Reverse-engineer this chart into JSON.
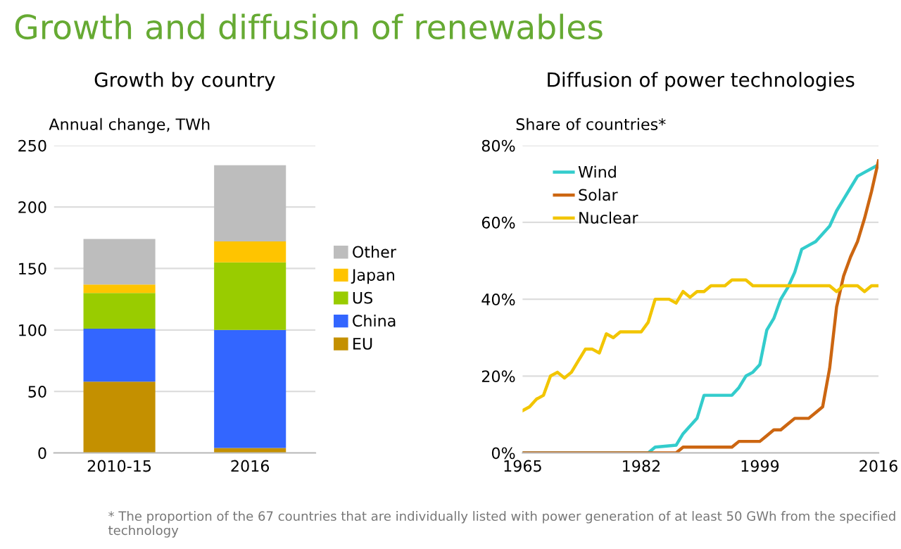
{
  "chart_data": [
    {
      "type": "other",
      "title": "Growth and diffusion of renewables",
      "annotations": [
        "* The proportion of the 67 countries that are individually listed with power generation of at least 50 GWh from the specified technology"
      ]
    },
    {
      "type": "bar",
      "title": "Growth by country",
      "ylabel": "Annual change, TWh",
      "categories": [
        "2010-15",
        "2016"
      ],
      "stacked": true,
      "ylim": [
        0,
        250
      ],
      "yticks": [
        0,
        50,
        100,
        150,
        200,
        250
      ],
      "grid": "y",
      "legend": "right",
      "series": [
        {
          "name": "EU",
          "color": "#c49000",
          "values": [
            58,
            4
          ]
        },
        {
          "name": "China",
          "color": "#3366ff",
          "values": [
            43,
            96
          ]
        },
        {
          "name": "US",
          "color": "#99cc00",
          "values": [
            29,
            55
          ]
        },
        {
          "name": "Japan",
          "color": "#ffc400",
          "values": [
            7,
            17
          ]
        },
        {
          "name": "Other",
          "color": "#bdbdbd",
          "values": [
            37,
            62
          ]
        }
      ]
    },
    {
      "type": "line",
      "title": "Diffusion of power technologies",
      "ylabel": "Share of countries*",
      "xlim": [
        1965,
        2016
      ],
      "xticks": [
        1965,
        1982,
        1999,
        2016
      ],
      "ylim": [
        0,
        80
      ],
      "yticks": [
        {
          "value": 0,
          "label": "0%"
        },
        {
          "value": 20,
          "label": "20%"
        },
        {
          "value": 40,
          "label": "40%"
        },
        {
          "value": 60,
          "label": "60%"
        },
        {
          "value": 80,
          "label": "80%"
        }
      ],
      "grid": "y",
      "legend": "top left",
      "series": [
        {
          "name": "Wind",
          "color": "#33cccc",
          "x": [
            1965,
            1983,
            1984,
            1987,
            1988,
            1989,
            1990,
            1991,
            1995,
            1996,
            1997,
            1998,
            1999,
            2000,
            2001,
            2002,
            2003,
            2004,
            2005,
            2006,
            2007,
            2008,
            2009,
            2010,
            2011,
            2012,
            2013,
            2014,
            2015,
            2016
          ],
          "values": [
            0,
            0,
            1.5,
            2,
            5,
            7,
            9,
            15,
            15,
            17,
            20,
            21,
            23,
            32,
            35,
            40,
            43,
            47,
            53,
            54,
            55,
            57,
            59,
            63,
            66,
            69,
            72,
            73,
            74,
            75
          ]
        },
        {
          "name": "Solar",
          "color": "#cc6611",
          "x": [
            1965,
            1987,
            1988,
            1995,
            1996,
            1999,
            2000,
            2001,
            2002,
            2003,
            2004,
            2006,
            2007,
            2008,
            2009,
            2010,
            2011,
            2012,
            2013,
            2014,
            2015,
            2016
          ],
          "values": [
            0,
            0,
            1.5,
            1.5,
            3,
            3,
            4.5,
            6,
            6,
            7.5,
            9,
            9,
            10.5,
            12,
            22,
            38,
            46,
            51,
            55,
            61,
            68,
            76
          ]
        },
        {
          "name": "Nuclear",
          "color": "#f2c500",
          "x": [
            1965,
            1966,
            1967,
            1968,
            1969,
            1970,
            1971,
            1972,
            1973,
            1974,
            1975,
            1976,
            1977,
            1978,
            1979,
            1982,
            1983,
            1984,
            1986,
            1987,
            1988,
            1989,
            1990,
            1991,
            1992,
            1994,
            1995,
            1997,
            1998,
            2009,
            2010,
            2011,
            2013,
            2014,
            2015,
            2016
          ],
          "values": [
            11,
            12,
            14,
            15,
            20,
            21,
            19.5,
            21,
            24,
            27,
            27,
            26,
            31,
            30,
            31.5,
            31.5,
            34,
            40,
            40,
            39,
            42,
            40.5,
            42,
            42,
            43.5,
            43.5,
            45,
            45,
            43.5,
            43.5,
            42,
            43.5,
            43.5,
            42,
            43.5,
            43.5
          ]
        }
      ]
    }
  ]
}
